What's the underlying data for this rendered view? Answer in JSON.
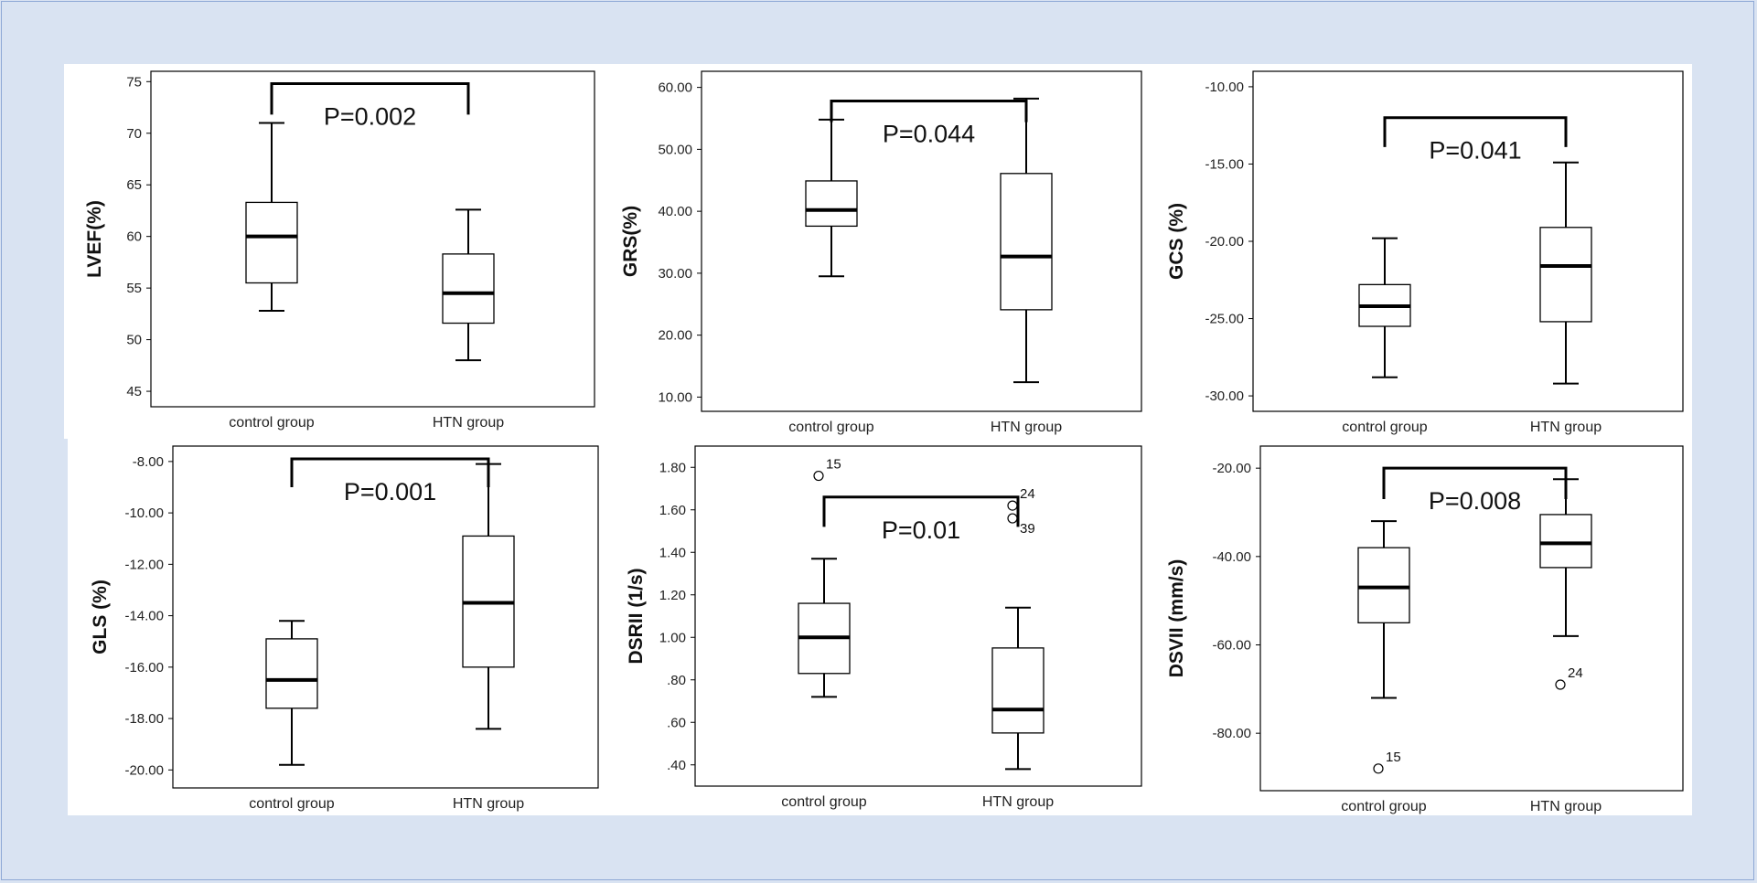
{
  "chart_data": [
    {
      "type": "box",
      "ylabel": "LVEF(%)",
      "categories": [
        "control group",
        "HTN group"
      ],
      "ylim": [
        43.5,
        76
      ],
      "yticks": [
        45,
        50,
        55,
        60,
        65,
        70,
        75
      ],
      "ytick_labels": [
        "45",
        "50",
        "55",
        "60",
        "65",
        "70",
        "75"
      ],
      "boxes": [
        {
          "whisker_low": 52.8,
          "q1": 55.5,
          "median": 60.0,
          "q3": 63.3,
          "whisker_high": 71.0
        },
        {
          "whisker_low": 48.0,
          "q1": 51.6,
          "median": 54.5,
          "q3": 58.3,
          "whisker_high": 62.6
        }
      ],
      "outliers": [],
      "annotation": {
        "text": "P=0.002",
        "bracket_y": 74.8,
        "drop_y": 71.8
      }
    },
    {
      "type": "box",
      "ylabel": "GRS(%)",
      "categories": [
        "control group",
        "HTN group"
      ],
      "ylim": [
        7.7,
        62.6
      ],
      "yticks": [
        10,
        20,
        30,
        40,
        50,
        60
      ],
      "ytick_labels": [
        "10.00",
        "20.00",
        "30.00",
        "40.00",
        "50.00",
        "60.00"
      ],
      "boxes": [
        {
          "whisker_low": 29.5,
          "q1": 37.6,
          "median": 40.2,
          "q3": 44.9,
          "whisker_high": 54.8
        },
        {
          "whisker_low": 12.4,
          "q1": 24.1,
          "median": 32.7,
          "q3": 46.1,
          "whisker_high": 58.2
        }
      ],
      "outliers": [],
      "annotation": {
        "text": "P=0.044",
        "bracket_y": 57.8,
        "drop_y": 54.4
      }
    },
    {
      "type": "box",
      "ylabel": "GCS (%)",
      "categories": [
        "control group",
        "HTN group"
      ],
      "ylim": [
        -31,
        -9
      ],
      "yticks": [
        -30,
        -25,
        -20,
        -15,
        -10
      ],
      "ytick_labels": [
        "-30.00",
        "-25.00",
        "-20.00",
        "-15.00",
        "-10.00"
      ],
      "boxes": [
        {
          "whisker_low": -28.8,
          "q1": -25.5,
          "median": -24.2,
          "q3": -22.8,
          "whisker_high": -19.8
        },
        {
          "whisker_low": -29.2,
          "q1": -25.2,
          "median": -21.6,
          "q3": -19.1,
          "whisker_high": -14.9
        }
      ],
      "outliers": [],
      "annotation": {
        "text": "P=0.041",
        "bracket_y": -12.0,
        "drop_y": -13.9
      }
    },
    {
      "type": "box",
      "ylabel": "GLS (%)",
      "categories": [
        "control group",
        "HTN group"
      ],
      "ylim": [
        -20.7,
        -7.4
      ],
      "yticks": [
        -20,
        -18,
        -16,
        -14,
        -12,
        -10,
        -8
      ],
      "ytick_labels": [
        "-20.00",
        "-18.00",
        "-16.00",
        "-14.00",
        "-12.00",
        "-10.00",
        "-8.00"
      ],
      "boxes": [
        {
          "whisker_low": -19.8,
          "q1": -17.6,
          "median": -16.5,
          "q3": -14.9,
          "whisker_high": -14.2
        },
        {
          "whisker_low": -18.4,
          "q1": -16.0,
          "median": -13.5,
          "q3": -10.9,
          "whisker_high": -8.1
        }
      ],
      "outliers": [],
      "annotation": {
        "text": "P=0.001",
        "bracket_y": -7.9,
        "drop_y": -9.0
      }
    },
    {
      "type": "box",
      "ylabel": "DSRII (1/s)",
      "categories": [
        "control group",
        "HTN group"
      ],
      "ylim": [
        0.3,
        1.9
      ],
      "yticks": [
        0.4,
        0.6,
        0.8,
        1.0,
        1.2,
        1.4,
        1.6,
        1.8
      ],
      "ytick_labels": [
        ".40",
        ".60",
        ".80",
        "1.00",
        "1.20",
        "1.40",
        "1.60",
        "1.80"
      ],
      "boxes": [
        {
          "whisker_low": 0.72,
          "q1": 0.83,
          "median": 1.0,
          "q3": 1.16,
          "whisker_high": 1.37
        },
        {
          "whisker_low": 0.38,
          "q1": 0.55,
          "median": 0.66,
          "q3": 0.95,
          "whisker_high": 1.14
        }
      ],
      "outliers": [
        {
          "group": 0,
          "value": 1.76,
          "label": "15"
        },
        {
          "group": 1,
          "value": 1.62,
          "label": "24"
        },
        {
          "group": 1,
          "value": 1.56,
          "label": "39"
        }
      ],
      "annotation": {
        "text": "P=0.01",
        "bracket_y": 1.66,
        "drop_y": 1.52
      }
    },
    {
      "type": "box",
      "ylabel": "DSVII (mm/s)",
      "categories": [
        "control group",
        "HTN group"
      ],
      "ylim": [
        -93,
        -15
      ],
      "yticks": [
        -80,
        -60,
        -40,
        -20
      ],
      "ytick_labels": [
        "-80.00",
        "-60.00",
        "-40.00",
        "-20.00"
      ],
      "boxes": [
        {
          "whisker_low": -72.0,
          "q1": -55.0,
          "median": -47.0,
          "q3": -38.0,
          "whisker_high": -32.0
        },
        {
          "whisker_low": -58.0,
          "q1": -42.5,
          "median": -37.0,
          "q3": -30.5,
          "whisker_high": -22.5
        }
      ],
      "outliers": [
        {
          "group": 0,
          "value": -88.0,
          "label": "15"
        },
        {
          "group": 1,
          "value": -69.0,
          "label": "24"
        }
      ],
      "annotation": {
        "text": "P=0.008",
        "bracket_y": -20.0,
        "drop_y": -27.0
      }
    }
  ]
}
